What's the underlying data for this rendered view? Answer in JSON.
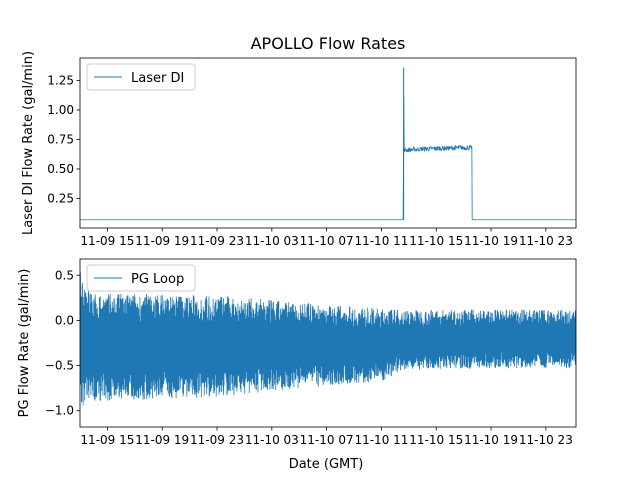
{
  "figure": {
    "title": "APOLLO Flow Rates",
    "xlabel": "Date (GMT)",
    "colors": {
      "series": "#1f77b4",
      "axis": "#000000",
      "background": "#ffffff",
      "legend_border": "#cccccc"
    }
  },
  "chart_data": [
    {
      "type": "line",
      "title": "APOLLO Flow Rates",
      "ylabel": "Laser DI Flow Rate (gal/min)",
      "legend": {
        "label": "Laser DI",
        "loc": "upper-left"
      },
      "xlim_hours": [
        0,
        36.2
      ],
      "ylim": [
        0.0,
        1.44
      ],
      "yticks": [
        0.25,
        0.5,
        0.75,
        1.0,
        1.25
      ],
      "ytick_labels": [
        "0.25",
        "0.50",
        "0.75",
        "1.00",
        "1.25"
      ],
      "xticks_hours": [
        2,
        6,
        10,
        14,
        18,
        22,
        26,
        30,
        34
      ],
      "xtick_labels": [
        "11-09 15",
        "11-09 19",
        "11-09 23",
        "11-10 03",
        "11-10 07",
        "11-10 11",
        "11-10 15",
        "11-10 19",
        "11-10 23"
      ],
      "x_hours": [
        0,
        23.6,
        23.62,
        23.66,
        23.7,
        23.72,
        25.0,
        28.0,
        28.6,
        28.62,
        36.2
      ],
      "values": [
        0.07,
        0.07,
        1.36,
        0.66,
        0.66,
        0.66,
        0.67,
        0.68,
        0.68,
        0.07,
        0.07
      ],
      "noise_amplitude": [
        0.0,
        0.0,
        0.0,
        0.02,
        0.02,
        0.02,
        0.02,
        0.02,
        0.02,
        0.0,
        0.0
      ]
    },
    {
      "type": "line",
      "title": "",
      "ylabel": "PG Flow Rate (gal/min)",
      "legend": {
        "label": "PG Loop",
        "loc": "upper-left"
      },
      "xlim_hours": [
        0,
        36.2
      ],
      "ylim": [
        -1.18,
        0.68
      ],
      "yticks": [
        -1.0,
        -0.5,
        0.0,
        0.5
      ],
      "ytick_labels": [
        "−1.0",
        "−0.5",
        "0.0",
        "0.5"
      ],
      "xticks_hours": [
        2,
        6,
        10,
        14,
        18,
        22,
        26,
        30,
        34
      ],
      "xtick_labels": [
        "11-09 15",
        "11-09 19",
        "11-09 23",
        "11-10 03",
        "11-10 07",
        "11-10 11",
        "11-10 15",
        "11-10 19",
        "11-10 23"
      ],
      "x_hours": [
        0,
        1,
        4,
        10,
        16,
        22,
        23.6,
        30,
        36.2
      ],
      "upper_envelope": [
        0.55,
        0.3,
        0.3,
        0.28,
        0.2,
        0.13,
        0.12,
        0.12,
        0.12
      ],
      "lower_envelope": [
        -1.05,
        -0.9,
        -0.88,
        -0.85,
        -0.75,
        -0.68,
        -0.55,
        -0.53,
        -0.53
      ]
    }
  ]
}
